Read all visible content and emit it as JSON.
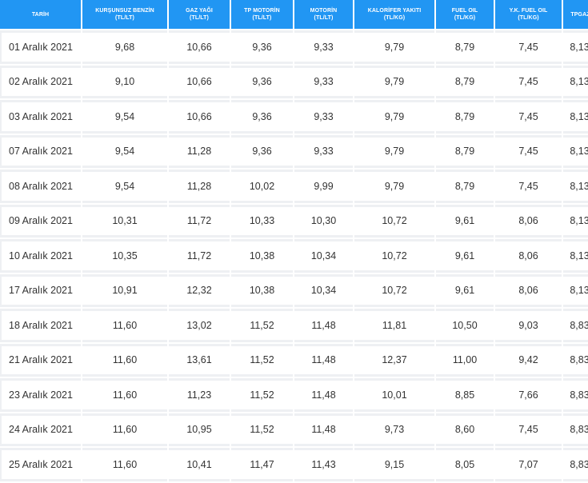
{
  "table": {
    "headers": [
      {
        "name": "TARİH",
        "unit": ""
      },
      {
        "name": "KURŞUNSUZ BENZİN",
        "unit": "(TL/LT)"
      },
      {
        "name": "GAZ YAĞI",
        "unit": "(TL/LT)"
      },
      {
        "name": "TP MOTORİN",
        "unit": "(TL/LT)"
      },
      {
        "name": "MOTORİN",
        "unit": "(TL/LT)"
      },
      {
        "name": "KALORİFER YAKITI",
        "unit": "(TL/KG)"
      },
      {
        "name": "FUEL OIL",
        "unit": "(TL/KG)"
      },
      {
        "name": "Y.K. FUEL OIL",
        "unit": "(TL/KG)"
      },
      {
        "name": "TPGAZ",
        "unit": ""
      }
    ],
    "rows": [
      [
        "01 Aralık 2021",
        "9,68",
        "10,66",
        "9,36",
        "9,33",
        "9,79",
        "8,79",
        "7,45",
        "8,13"
      ],
      [
        "02 Aralık 2021",
        "9,10",
        "10,66",
        "9,36",
        "9,33",
        "9,79",
        "8,79",
        "7,45",
        "8,13"
      ],
      [
        "03 Aralık 2021",
        "9,54",
        "10,66",
        "9,36",
        "9,33",
        "9,79",
        "8,79",
        "7,45",
        "8,13"
      ],
      [
        "07 Aralık 2021",
        "9,54",
        "11,28",
        "9,36",
        "9,33",
        "9,79",
        "8,79",
        "7,45",
        "8,13"
      ],
      [
        "08 Aralık 2021",
        "9,54",
        "11,28",
        "10,02",
        "9,99",
        "9,79",
        "8,79",
        "7,45",
        "8,13"
      ],
      [
        "09 Aralık 2021",
        "10,31",
        "11,72",
        "10,33",
        "10,30",
        "10,72",
        "9,61",
        "8,06",
        "8,13"
      ],
      [
        "10 Aralık 2021",
        "10,35",
        "11,72",
        "10,38",
        "10,34",
        "10,72",
        "9,61",
        "8,06",
        "8,13"
      ],
      [
        "17 Aralık 2021",
        "10,91",
        "12,32",
        "10,38",
        "10,34",
        "10,72",
        "9,61",
        "8,06",
        "8,13"
      ],
      [
        "18 Aralık 2021",
        "11,60",
        "13,02",
        "11,52",
        "11,48",
        "11,81",
        "10,50",
        "9,03",
        "8,83"
      ],
      [
        "21 Aralık 2021",
        "11,60",
        "13,61",
        "11,52",
        "11,48",
        "12,37",
        "11,00",
        "9,42",
        "8,83"
      ],
      [
        "23 Aralık 2021",
        "11,60",
        "11,23",
        "11,52",
        "11,48",
        "10,01",
        "8,85",
        "7,66",
        "8,83"
      ],
      [
        "24 Aralık 2021",
        "11,60",
        "10,95",
        "11,52",
        "11,48",
        "9,73",
        "8,60",
        "7,45",
        "8,83"
      ],
      [
        "25 Aralık 2021",
        "11,60",
        "10,41",
        "11,47",
        "11,43",
        "9,15",
        "8,05",
        "7,07",
        "8,83"
      ]
    ]
  }
}
